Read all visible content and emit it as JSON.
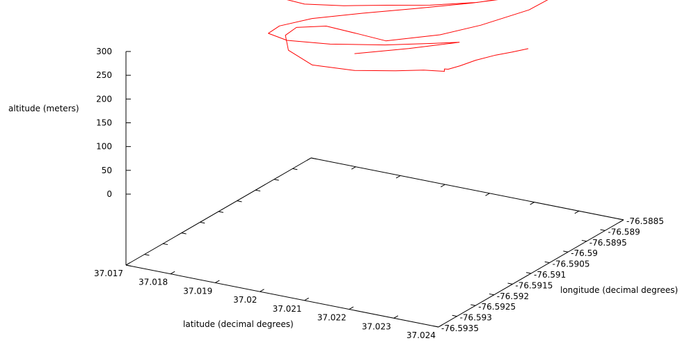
{
  "chart_data": {
    "type": "line3d",
    "title": "",
    "xlabel": "latitude (decimal degrees)",
    "ylabel": "longitude (decimal degrees)",
    "zlabel": "altitude (meters)",
    "x_ticks": [
      "37.017",
      "37.018",
      "37.019",
      "37.02",
      "37.021",
      "37.022",
      "37.023",
      "37.024"
    ],
    "y_ticks": [
      "-76.5935",
      "-76.593",
      "-76.5925",
      "-76.592",
      "-76.5915",
      "-76.591",
      "-76.5905",
      "-76.59",
      "-76.5895",
      "-76.589",
      "-76.5885"
    ],
    "z_ticks": [
      "0",
      "50",
      "100",
      "150",
      "200",
      "250",
      "300"
    ],
    "xlim": [
      37.017,
      37.024
    ],
    "ylim": [
      -76.5935,
      -76.5885
    ],
    "zlim": [
      0,
      300
    ],
    "grid": false,
    "series": [
      {
        "color": "#ff0000",
        "points": [
          [
            37.0217,
            -76.5883,
            159
          ],
          [
            37.0215,
            -76.5885,
            157
          ],
          [
            37.0213,
            -76.5887,
            156
          ],
          [
            37.0211,
            -76.589,
            155
          ],
          [
            37.021,
            -76.5893,
            155
          ],
          [
            37.0209,
            -76.5895,
            155
          ],
          [
            37.0209,
            -76.5896,
            160
          ],
          [
            37.0209,
            -76.5896,
            155
          ],
          [
            37.0206,
            -76.5898,
            161
          ],
          [
            37.0203,
            -76.5902,
            172
          ],
          [
            37.0198,
            -76.5907,
            186
          ],
          [
            37.0191,
            -76.591,
            198
          ],
          [
            37.0184,
            -76.5908,
            207
          ],
          [
            37.018,
            -76.5904,
            213
          ],
          [
            37.018,
            -76.5901,
            216
          ],
          [
            37.0185,
            -76.5899,
            219
          ],
          [
            37.0193,
            -76.59,
            222
          ],
          [
            37.02,
            -76.5901,
            225
          ],
          [
            37.0208,
            -76.5896,
            230
          ],
          [
            37.0213,
            -76.5891,
            237
          ],
          [
            37.0218,
            -76.5884,
            247
          ],
          [
            37.022,
            -76.5878,
            259
          ],
          [
            37.022,
            -76.5873,
            268
          ],
          [
            37.0218,
            -76.587,
            273
          ],
          [
            37.0212,
            -76.587,
            269
          ],
          [
            37.0205,
            -76.5872,
            260
          ],
          [
            37.0196,
            -76.5875,
            251
          ],
          [
            37.0187,
            -76.5878,
            242
          ],
          [
            37.0179,
            -76.5881,
            233
          ],
          [
            37.0173,
            -76.5885,
            226
          ],
          [
            37.017,
            -76.589,
            222
          ],
          [
            37.0171,
            -76.5893,
            222
          ],
          [
            37.0176,
            -76.5894,
            226
          ],
          [
            37.0184,
            -76.5893,
            233
          ],
          [
            37.0192,
            -76.5891,
            240
          ],
          [
            37.02,
            -76.5889,
            246
          ],
          [
            37.0208,
            -76.5886,
            253
          ],
          [
            37.0213,
            -76.5883,
            259
          ],
          [
            37.0215,
            -76.5882,
            262
          ],
          [
            37.0213,
            -76.5883,
            258
          ],
          [
            37.0207,
            -76.5886,
            250
          ],
          [
            37.0198,
            -76.589,
            240
          ],
          [
            37.0189,
            -76.5894,
            231
          ],
          [
            37.0181,
            -76.5898,
            223
          ],
          [
            37.0177,
            -76.5902,
            218
          ],
          [
            37.0177,
            -76.5905,
            216
          ],
          [
            37.0182,
            -76.5906,
            215
          ],
          [
            37.019,
            -76.5904,
            213
          ],
          [
            37.0199,
            -76.59,
            210
          ],
          [
            37.0206,
            -76.5895,
            204
          ],
          [
            37.0209,
            -76.5892,
            198
          ],
          [
            37.0207,
            -76.5892,
            192
          ],
          [
            37.0201,
            -76.5896,
            188
          ],
          [
            37.0193,
            -76.5901,
            185
          ]
        ]
      }
    ]
  }
}
